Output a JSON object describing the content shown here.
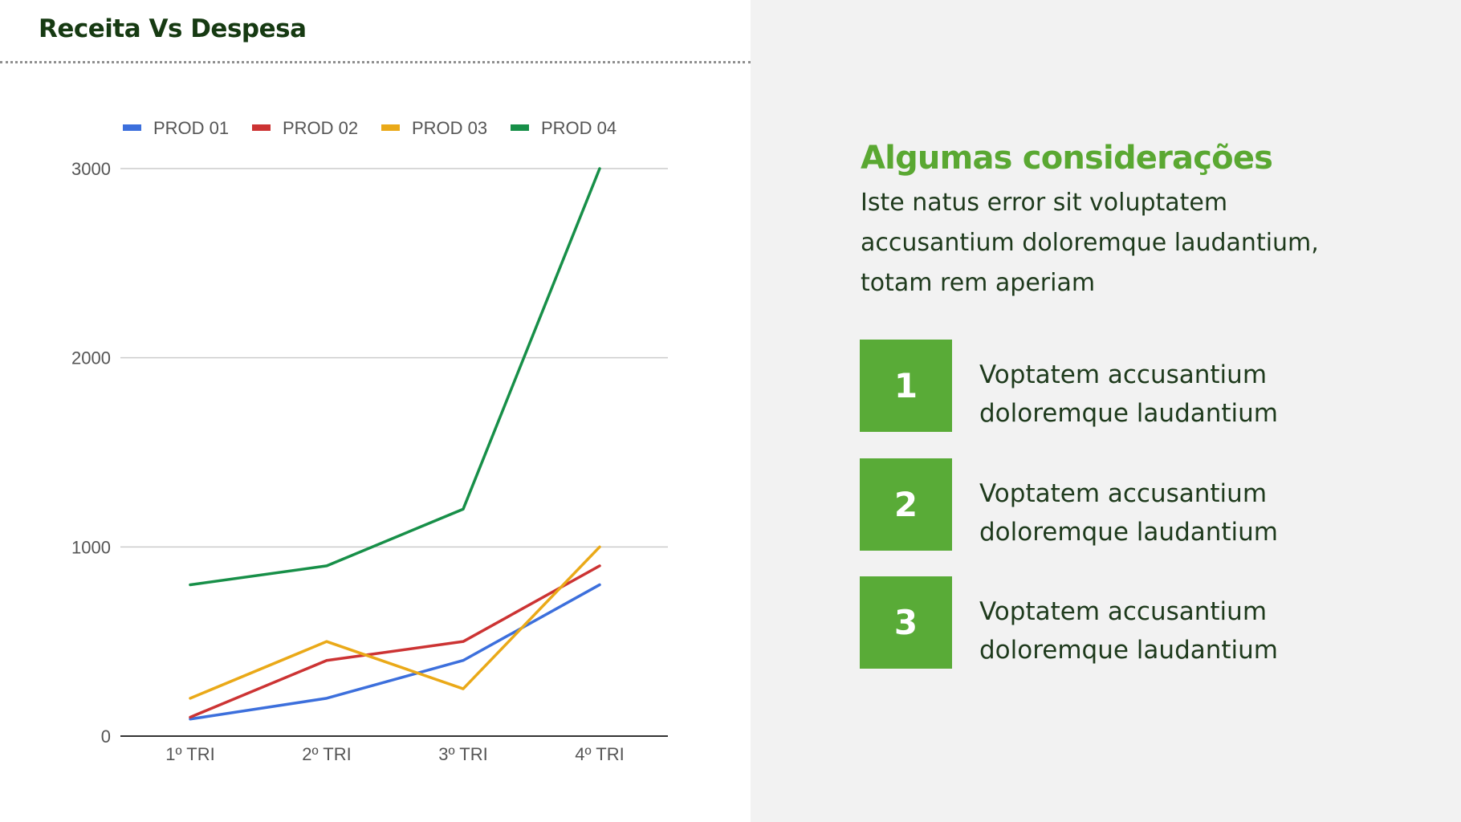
{
  "page": {
    "title": "Receita Vs Despesa"
  },
  "consideracoes": {
    "heading": "Algumas considerações",
    "body": "Iste natus error sit voluptatem accusantium doloremque laudantium, totam rem aperiam",
    "items": [
      {
        "number": "1",
        "text": "Voptatem accusantium doloremque laudantium"
      },
      {
        "number": "2",
        "text": "Voptatem accusantium doloremque laudantium"
      },
      {
        "number": "3",
        "text": "Voptatem accusantium doloremque laudantium"
      }
    ]
  },
  "colors": {
    "accent_green": "#59ab37",
    "title_dark": "#163a12",
    "panel_background": "#f2f2f2"
  },
  "chart_data": {
    "type": "line",
    "categories": [
      "1º TRI",
      "2º TRI",
      "3º TRI",
      "4º TRI"
    ],
    "series": [
      {
        "name": "PROD 01",
        "color": "#3c6fdc",
        "values": [
          90,
          200,
          400,
          800
        ]
      },
      {
        "name": "PROD 02",
        "color": "#cc3333",
        "values": [
          100,
          400,
          500,
          900
        ]
      },
      {
        "name": "PROD 03",
        "color": "#eaa918",
        "values": [
          200,
          500,
          250,
          1000
        ]
      },
      {
        "name": "PROD 04",
        "color": "#178f48",
        "values": [
          800,
          900,
          1200,
          3000
        ]
      }
    ],
    "yticks": [
      0,
      1000,
      2000,
      3000
    ],
    "ylim": [
      0,
      3000
    ],
    "grid": true,
    "legend_position": "top"
  }
}
